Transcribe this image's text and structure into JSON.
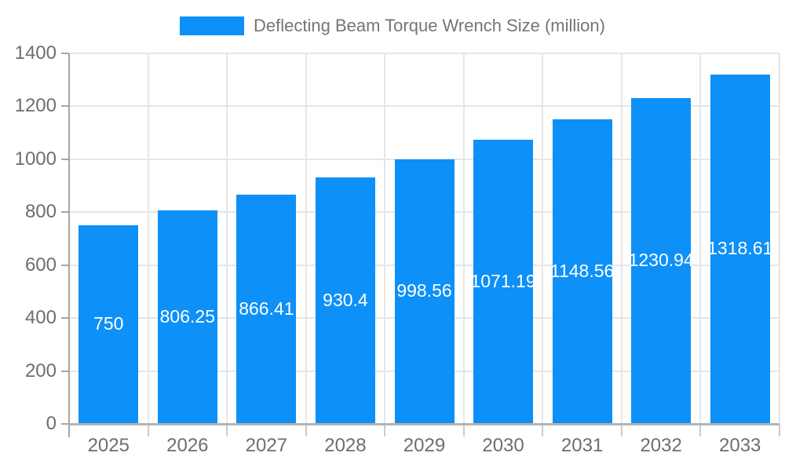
{
  "chart_data": {
    "type": "bar",
    "title": "Deflecting Beam Torque Wrench Size (million)",
    "categories": [
      "2025",
      "2026",
      "2027",
      "2028",
      "2029",
      "2030",
      "2031",
      "2032",
      "2033"
    ],
    "values": [
      750,
      806.25,
      866.41,
      930.4,
      998.56,
      1071.19,
      1148.56,
      1230.94,
      1318.61
    ],
    "value_labels": [
      "750",
      "806.25",
      "866.41",
      "930.4",
      "998.56",
      "1071.19",
      "1148.56",
      "1230.94",
      "1318.61"
    ],
    "xlabel": "",
    "ylabel": "",
    "ylim": [
      0,
      1400
    ],
    "ytick_step": 200,
    "ytick_labels": [
      "0",
      "200",
      "400",
      "600",
      "800",
      "1000",
      "1200",
      "1400"
    ],
    "legend_position": "top",
    "grid": true,
    "colors": {
      "bar": "#0d90f8",
      "gridline": "#e6e6e6",
      "axis_line": "#a6a6a6",
      "baseline": "#b3b3b3",
      "x_tick": "#cccccc",
      "axis_text": "#6e6e6e",
      "legend_text": "#757575",
      "value_text": "#ffffff",
      "background": "#ffffff"
    }
  }
}
